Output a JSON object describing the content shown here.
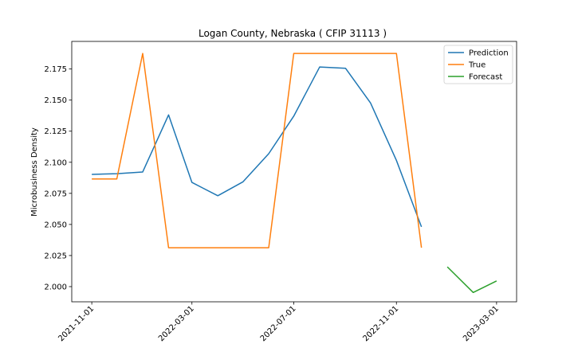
{
  "chart_data": {
    "type": "line",
    "title": "Logan County, Nebraska ( CFIP 31113 )",
    "xlabel": "",
    "ylabel": "Microbusiness Density",
    "x_axis_type": "date",
    "xlim": [
      "2021-10-08",
      "2023-03-25"
    ],
    "ylim": [
      1.9878,
      2.1972
    ],
    "xticks": [
      "2021-11-01",
      "2022-03-01",
      "2022-07-01",
      "2022-11-01",
      "2023-03-01"
    ],
    "yticks": [
      "2.000",
      "2.025",
      "2.050",
      "2.075",
      "2.100",
      "2.125",
      "2.150",
      "2.175"
    ],
    "legend_position": "top-right",
    "grid": false,
    "series": [
      {
        "name": "Prediction",
        "color": "#1f77b4",
        "x": [
          "2021-11-01",
          "2021-12-01",
          "2022-01-01",
          "2022-02-01",
          "2022-03-01",
          "2022-04-01",
          "2022-05-01",
          "2022-06-01",
          "2022-07-01",
          "2022-08-01",
          "2022-09-01",
          "2022-10-01",
          "2022-11-01",
          "2022-12-01"
        ],
        "values": [
          2.0903,
          2.0908,
          2.0922,
          2.1381,
          2.0838,
          2.0731,
          2.0842,
          2.1069,
          2.1371,
          2.1766,
          2.1756,
          2.1477,
          2.1015,
          2.0481
        ]
      },
      {
        "name": "True",
        "color": "#ff7f0e",
        "x": [
          "2021-11-01",
          "2021-12-01",
          "2022-01-01",
          "2022-02-01",
          "2022-03-01",
          "2022-04-01",
          "2022-05-01",
          "2022-06-01",
          "2022-07-01",
          "2022-08-01",
          "2022-09-01",
          "2022-10-01",
          "2022-11-01",
          "2022-12-01"
        ],
        "values": [
          2.0866,
          2.0866,
          2.1875,
          2.0313,
          2.0313,
          2.0313,
          2.0313,
          2.0313,
          2.1875,
          2.1875,
          2.1875,
          2.1875,
          2.1875,
          2.0313
        ]
      },
      {
        "name": "Forecast",
        "color": "#2ca02c",
        "x": [
          "2023-01-01",
          "2023-02-01",
          "2023-03-01"
        ],
        "values": [
          2.0159,
          1.9953,
          2.0046
        ]
      }
    ]
  }
}
